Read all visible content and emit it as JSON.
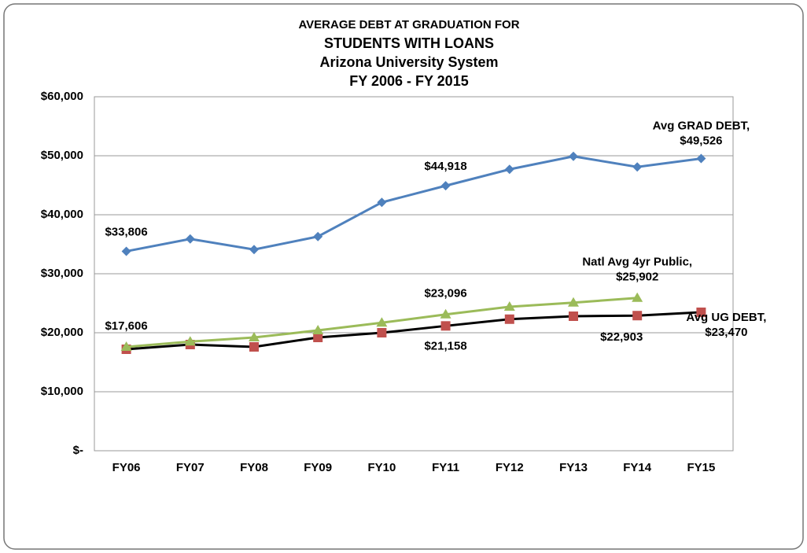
{
  "chart_data": {
    "type": "line",
    "title": [
      "AVERAGE DEBT AT GRADUATION FOR",
      "STUDENTS WITH LOANS"
    ],
    "subtitle": [
      "Arizona University System",
      "FY 2006 - FY 2015"
    ],
    "categories": [
      "FY06",
      "FY07",
      "FY08",
      "FY09",
      "FY10",
      "FY11",
      "FY12",
      "FY13",
      "FY14",
      "FY15"
    ],
    "ylim": [
      0,
      60000
    ],
    "yticks": [
      {
        "value": 0,
        "label": "$-"
      },
      {
        "value": 10000,
        "label": "$10,000"
      },
      {
        "value": 20000,
        "label": "$20,000"
      },
      {
        "value": 30000,
        "label": "$30,000"
      },
      {
        "value": 40000,
        "label": "$40,000"
      },
      {
        "value": 50000,
        "label": "$50,000"
      },
      {
        "value": 60000,
        "label": "$60,000"
      }
    ],
    "grid": true,
    "series": [
      {
        "name": "Avg GRAD DEBT,",
        "color": "#4f81bd",
        "line_color": "#4f81bd",
        "marker": "diamond",
        "values": [
          33806,
          35900,
          34100,
          36300,
          42100,
          44918,
          47700,
          49900,
          48100,
          49526
        ],
        "value_labels": [
          "$33,806",
          null,
          null,
          null,
          null,
          "$44,918",
          null,
          null,
          null,
          "$49,526"
        ]
      },
      {
        "name": "Avg UG DEBT,",
        "color": "#c0504d",
        "line_color": "#000000",
        "marker": "square",
        "values": [
          17200,
          18000,
          17600,
          19200,
          20000,
          21158,
          22300,
          22800,
          22903,
          23470
        ],
        "value_labels": [
          null,
          null,
          null,
          null,
          null,
          "$21,158",
          null,
          null,
          "$22,903",
          "$23,470"
        ]
      },
      {
        "name": "Natl Avg 4yr Public,",
        "color": "#9bbb59",
        "line_color": "#9bbb59",
        "marker": "triangle",
        "values": [
          17606,
          18500,
          19200,
          20400,
          21700,
          23096,
          24400,
          25100,
          25902,
          null
        ],
        "value_labels": [
          "$17,606",
          null,
          null,
          null,
          null,
          "$23,096",
          null,
          null,
          "$25,902",
          null
        ]
      }
    ]
  }
}
